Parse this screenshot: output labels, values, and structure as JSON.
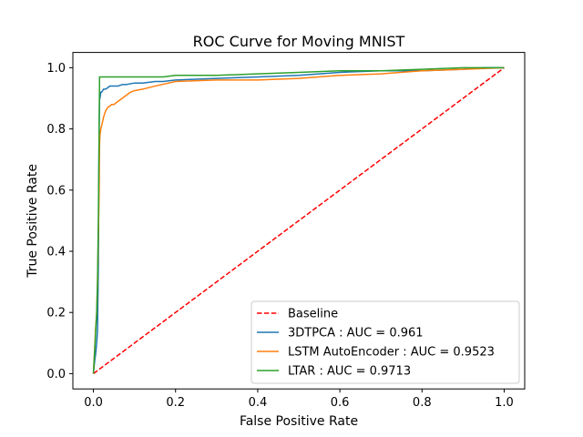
{
  "chart_data": {
    "type": "line",
    "title": "ROC Curve for Moving MNIST",
    "xlabel": "False Positive Rate",
    "ylabel": "True Positive Rate",
    "xlim": [
      -0.05,
      1.05
    ],
    "ylim": [
      -0.05,
      1.05
    ],
    "xticks": [
      "0.0",
      "0.2",
      "0.4",
      "0.6",
      "0.8",
      "1.0"
    ],
    "yticks": [
      "0.0",
      "0.2",
      "0.4",
      "0.6",
      "0.8",
      "1.0"
    ],
    "grid": false,
    "legend_position": "lower-right",
    "series": [
      {
        "name": "Baseline",
        "color": "#ff0000",
        "dash": "dashed",
        "x": [
          0.0,
          1.0
        ],
        "y": [
          0.0,
          1.0
        ]
      },
      {
        "name": "3DTPCA : AUC = 0.961",
        "color": "#1f77b4",
        "dash": "solid",
        "x": [
          0.0,
          0.003,
          0.005,
          0.008,
          0.01,
          0.012,
          0.013,
          0.014,
          0.015,
          0.016,
          0.018,
          0.02,
          0.025,
          0.03,
          0.035,
          0.04,
          0.05,
          0.06,
          0.07,
          0.08,
          0.1,
          0.12,
          0.15,
          0.17,
          0.2,
          0.3,
          0.4,
          0.5,
          0.6,
          0.7,
          0.8,
          0.9,
          0.95,
          1.0
        ],
        "y": [
          0.0,
          0.04,
          0.06,
          0.1,
          0.14,
          0.35,
          0.6,
          0.82,
          0.9,
          0.9,
          0.92,
          0.92,
          0.93,
          0.93,
          0.935,
          0.94,
          0.94,
          0.94,
          0.945,
          0.945,
          0.95,
          0.95,
          0.955,
          0.955,
          0.96,
          0.965,
          0.97,
          0.975,
          0.985,
          0.99,
          0.99,
          0.995,
          1.0,
          1.0
        ]
      },
      {
        "name": "LSTM AutoEncoder : AUC = 0.9523",
        "color": "#ff7f0e",
        "dash": "solid",
        "x": [
          0.0,
          0.003,
          0.005,
          0.008,
          0.01,
          0.012,
          0.014,
          0.015,
          0.016,
          0.018,
          0.02,
          0.025,
          0.03,
          0.035,
          0.04,
          0.045,
          0.05,
          0.06,
          0.07,
          0.08,
          0.09,
          0.1,
          0.12,
          0.15,
          0.2,
          0.3,
          0.4,
          0.5,
          0.6,
          0.7,
          0.8,
          0.9,
          1.0
        ],
        "y": [
          0.0,
          0.08,
          0.14,
          0.2,
          0.3,
          0.45,
          0.6,
          0.75,
          0.78,
          0.8,
          0.81,
          0.84,
          0.86,
          0.87,
          0.875,
          0.88,
          0.88,
          0.89,
          0.9,
          0.91,
          0.92,
          0.925,
          0.93,
          0.94,
          0.955,
          0.96,
          0.96,
          0.965,
          0.975,
          0.98,
          0.99,
          0.995,
          1.0
        ]
      },
      {
        "name": "LTAR : AUC = 0.9713",
        "color": "#2ca02c",
        "dash": "solid",
        "x": [
          0.0,
          0.002,
          0.004,
          0.006,
          0.008,
          0.01,
          0.012,
          0.014,
          0.015,
          0.016,
          0.05,
          0.1,
          0.17,
          0.2,
          0.3,
          0.4,
          0.5,
          0.6,
          0.7,
          0.8,
          0.9,
          1.0
        ],
        "y": [
          0.0,
          0.05,
          0.1,
          0.15,
          0.2,
          0.3,
          0.5,
          0.8,
          0.97,
          0.97,
          0.97,
          0.97,
          0.97,
          0.975,
          0.975,
          0.98,
          0.985,
          0.99,
          0.99,
          0.995,
          1.0,
          1.0
        ]
      }
    ]
  }
}
